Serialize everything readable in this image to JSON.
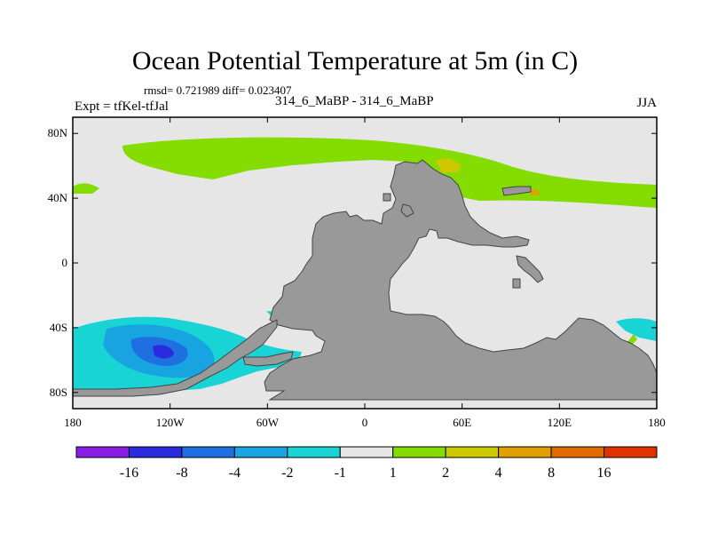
{
  "figure": {
    "title": "Ocean Potential Temperature at 5m (in C)",
    "stats": "rmsd= 0.721989  diff= 0.023407",
    "left_label": "Expt = tfKel-tfJal",
    "center_label": "314_6_MaBP - 314_6_MaBP",
    "right_label": "JJA"
  },
  "map": {
    "projection": "cylindrical-equidistant",
    "lon_range": [
      -180,
      180
    ],
    "lat_range": [
      -90,
      90
    ],
    "lat_ticks": [
      {
        "value": 80,
        "label": "80N"
      },
      {
        "value": 40,
        "label": "40N"
      },
      {
        "value": 0,
        "label": "0"
      },
      {
        "value": -40,
        "label": "40S"
      },
      {
        "value": -80,
        "label": "80S"
      }
    ],
    "lon_ticks": [
      {
        "value": -180,
        "label": "180"
      },
      {
        "value": -120,
        "label": "120W"
      },
      {
        "value": -60,
        "label": "60W"
      },
      {
        "value": 0,
        "label": "0"
      },
      {
        "value": 60,
        "label": "60E"
      },
      {
        "value": 120,
        "label": "120E"
      },
      {
        "value": 180,
        "label": "180"
      }
    ],
    "land_color": "#999999",
    "ocean_background_color": "#e6e6e6"
  },
  "colorbar": {
    "colors": [
      "#8a1ee6",
      "#2a2adf",
      "#1e6fe0",
      "#18a4e0",
      "#18d4d4",
      "#e6e6e6",
      "#84dc00",
      "#cdc800",
      "#e0a000",
      "#e06a00",
      "#e03200"
    ],
    "labels": [
      "-16",
      "-8",
      "-4",
      "-2",
      "-1",
      "1",
      "2",
      "4",
      "8",
      "16"
    ]
  }
}
